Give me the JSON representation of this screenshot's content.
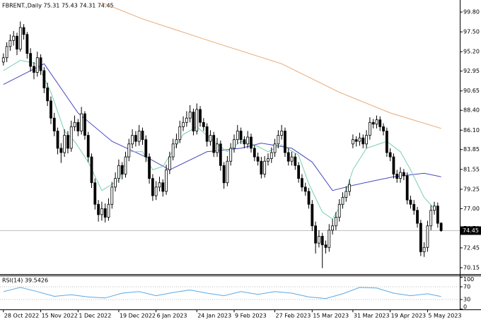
{
  "chart_data": [
    {
      "type": "candlestick",
      "title": "FBRENT.,Daily 75.31 75.43 74.31 74.45",
      "xlim": [
        -1,
        134.5
      ],
      "ylim": [
        69.41,
        100.95
      ],
      "yticks": [
        {
          "value": 99.8,
          "label": "99.80"
        },
        {
          "value": 97.5,
          "label": "97.50"
        },
        {
          "value": 95.2,
          "label": "95.20"
        },
        92.95,
        90.65,
        {
          "value": 88.4,
          "label": "88.40"
        },
        {
          "value": 86.1,
          "label": "86.10"
        },
        83.85,
        81.55,
        79.25,
        {
          "value": 77,
          "label": "77.00"
        },
        {
          "value": 74.7,
          "label": "74.70"
        },
        72.45,
        70.15
      ],
      "xticks": [
        {
          "value": 0,
          "label": "28 Oct 2022"
        },
        {
          "value": 11,
          "label": "15 Nov 2022"
        },
        {
          "value": 22,
          "label": "1 Dec 2022"
        },
        {
          "value": 34,
          "label": "19 Dec 2022"
        },
        {
          "value": 45,
          "label": "6 Jan 2023"
        },
        {
          "value": 57,
          "label": "24 Jan 2023"
        },
        {
          "value": 68,
          "label": "9 Feb 2023"
        },
        {
          "value": 80,
          "label": "27 Feb 2023"
        },
        {
          "value": 91,
          "label": "15 Mar 2023"
        },
        {
          "value": 103,
          "label": "31 Mar 2023"
        },
        {
          "value": 114,
          "label": "19 Apr 2023"
        },
        {
          "value": 125,
          "label": "5 May 2023"
        }
      ],
      "last_price": 74.45,
      "candles": [
        [
          94.0,
          95.0,
          93.6,
          94.5
        ],
        [
          94.5,
          96.3,
          94.0,
          95.8
        ],
        [
          95.8,
          97.2,
          95.3,
          96.5
        ],
        [
          96.5,
          97.6,
          95.9,
          97.0
        ],
        [
          97.0,
          97.4,
          94.8,
          95.5
        ],
        [
          95.5,
          98.7,
          95.2,
          98.0
        ],
        [
          98.0,
          98.4,
          96.6,
          97.2
        ],
        [
          97.2,
          97.5,
          94.4,
          95.0
        ],
        [
          95.0,
          95.6,
          92.9,
          93.5
        ],
        [
          93.5,
          94.0,
          92.0,
          92.8
        ],
        [
          92.8,
          95.2,
          92.3,
          94.5
        ],
        [
          94.5,
          94.9,
          92.5,
          93.0
        ],
        [
          93.0,
          93.4,
          90.4,
          91.0
        ],
        [
          91.0,
          91.6,
          88.9,
          89.5
        ],
        [
          89.5,
          90.0,
          86.8,
          87.5
        ],
        [
          87.5,
          88.1,
          85.4,
          86.0
        ],
        [
          86.0,
          86.4,
          83.3,
          84.0
        ],
        [
          84.0,
          84.6,
          82.3,
          83.5
        ],
        [
          83.5,
          86.2,
          83.0,
          85.5
        ],
        [
          85.5,
          86.0,
          83.4,
          84.0
        ],
        [
          84.0,
          87.2,
          83.6,
          86.5
        ],
        [
          86.5,
          87.8,
          86.0,
          87.0
        ],
        [
          87.0,
          87.4,
          85.4,
          86.0
        ],
        [
          86.0,
          88.8,
          85.6,
          88.0
        ],
        [
          88.0,
          88.3,
          85.0,
          85.5
        ],
        [
          85.5,
          85.9,
          82.4,
          83.0
        ],
        [
          83.0,
          83.4,
          79.4,
          80.0
        ],
        [
          80.0,
          80.5,
          76.9,
          77.5
        ],
        [
          77.5,
          78.0,
          75.5,
          76.3
        ],
        [
          76.3,
          77.8,
          75.6,
          77.0
        ],
        [
          77.0,
          77.6,
          75.4,
          76.0
        ],
        [
          76.0,
          78.2,
          75.6,
          77.5
        ],
        [
          77.5,
          80.1,
          77.0,
          79.5
        ],
        [
          79.5,
          81.2,
          79.0,
          80.5
        ],
        [
          80.5,
          82.7,
          80.0,
          82.0
        ],
        [
          82.0,
          82.4,
          80.4,
          81.0
        ],
        [
          81.0,
          83.6,
          80.6,
          83.0
        ],
        [
          83.0,
          85.1,
          82.5,
          84.5
        ],
        [
          84.5,
          86.2,
          84.0,
          85.5
        ],
        [
          85.5,
          86.0,
          84.2,
          84.8
        ],
        [
          84.8,
          86.7,
          84.3,
          86.0
        ],
        [
          86.0,
          86.4,
          84.4,
          85.0
        ],
        [
          85.0,
          85.5,
          82.4,
          83.0
        ],
        [
          83.0,
          83.4,
          79.9,
          80.5
        ],
        [
          80.5,
          81.0,
          77.9,
          78.5
        ],
        [
          78.5,
          80.2,
          78.0,
          79.5
        ],
        [
          79.5,
          80.7,
          79.0,
          80.0
        ],
        [
          80.0,
          80.4,
          78.4,
          79.0
        ],
        [
          79.0,
          82.1,
          78.6,
          81.5
        ],
        [
          81.5,
          83.6,
          81.0,
          83.0
        ],
        [
          83.0,
          85.1,
          82.6,
          84.5
        ],
        [
          84.5,
          85.7,
          84.0,
          85.0
        ],
        [
          85.0,
          87.2,
          84.6,
          86.5
        ],
        [
          86.5,
          87.7,
          86.0,
          87.0
        ],
        [
          87.0,
          88.3,
          86.5,
          87.5
        ],
        [
          87.5,
          89.0,
          87.0,
          88.2
        ],
        [
          88.2,
          88.6,
          85.5,
          86.0
        ],
        [
          86.0,
          89.2,
          85.6,
          88.5
        ],
        [
          88.5,
          88.9,
          86.5,
          87.0
        ],
        [
          87.0,
          87.5,
          86.0,
          86.5
        ],
        [
          86.5,
          86.9,
          84.2,
          84.8
        ],
        [
          84.8,
          86.1,
          84.3,
          85.5
        ],
        [
          85.5,
          85.9,
          83.0,
          83.5
        ],
        [
          83.5,
          85.2,
          83.0,
          84.5
        ],
        [
          84.5,
          84.9,
          81.4,
          82.0
        ],
        [
          82.0,
          82.4,
          79.3,
          80.0
        ],
        [
          80.0,
          83.1,
          79.6,
          82.5
        ],
        [
          82.5,
          84.6,
          82.0,
          84.0
        ],
        [
          84.0,
          85.6,
          83.5,
          85.0
        ],
        [
          85.0,
          86.7,
          84.5,
          86.0
        ],
        [
          86.0,
          86.4,
          84.5,
          85.0
        ],
        [
          85.0,
          85.4,
          84.0,
          84.5
        ],
        [
          84.5,
          86.0,
          84.0,
          85.3
        ],
        [
          85.3,
          85.7,
          83.5,
          84.0
        ],
        [
          84.0,
          84.4,
          82.5,
          83.0
        ],
        [
          83.0,
          83.5,
          82.0,
          82.5
        ],
        [
          82.5,
          83.0,
          80.5,
          81.0
        ],
        [
          81.0,
          83.1,
          80.6,
          82.5
        ],
        [
          82.5,
          83.4,
          82.0,
          82.8
        ],
        [
          82.8,
          84.1,
          82.3,
          83.5
        ],
        [
          83.5,
          85.1,
          83.0,
          84.5
        ],
        [
          84.5,
          86.1,
          84.0,
          85.5
        ],
        [
          85.5,
          86.7,
          85.0,
          86.0
        ],
        [
          86.0,
          86.4,
          83.0,
          83.5
        ],
        [
          83.5,
          84.0,
          82.0,
          82.5
        ],
        [
          82.5,
          83.6,
          82.0,
          83.0
        ],
        [
          83.0,
          83.4,
          81.5,
          82.0
        ],
        [
          82.0,
          82.4,
          80.0,
          80.5
        ],
        [
          80.5,
          81.0,
          79.0,
          79.5
        ],
        [
          79.5,
          80.0,
          78.5,
          79.0
        ],
        [
          79.0,
          79.4,
          77.0,
          77.5
        ],
        [
          77.5,
          78.0,
          74.4,
          75.0
        ],
        [
          75.0,
          75.5,
          71.8,
          73.0
        ],
        [
          73.0,
          74.5,
          72.5,
          73.8
        ],
        [
          73.8,
          74.2,
          70.1,
          72.8
        ],
        [
          72.8,
          73.3,
          71.8,
          72.5
        ],
        [
          72.5,
          75.2,
          72.0,
          74.5
        ],
        [
          74.5,
          75.8,
          74.0,
          75.0
        ],
        [
          75.0,
          76.6,
          74.5,
          76.0
        ],
        [
          76.0,
          78.1,
          75.5,
          77.5
        ],
        [
          77.5,
          78.9,
          77.0,
          78.3
        ],
        [
          78.3,
          79.6,
          77.8,
          79.0
        ],
        [
          79.0,
          80.4,
          78.5,
          79.8
        ],
        [
          84.5,
          85.6,
          84.0,
          85.0
        ],
        [
          85.0,
          85.4,
          84.2,
          84.8
        ],
        [
          84.8,
          85.8,
          84.3,
          85.2
        ],
        [
          85.2,
          85.6,
          84.0,
          84.5
        ],
        [
          84.5,
          86.1,
          84.0,
          85.5
        ],
        [
          85.5,
          87.6,
          85.0,
          87.0
        ],
        [
          87.0,
          87.4,
          86.3,
          86.8
        ],
        [
          86.8,
          87.8,
          86.3,
          87.3
        ],
        [
          87.3,
          87.7,
          86.0,
          86.5
        ],
        [
          86.5,
          86.9,
          85.5,
          86.0
        ],
        [
          86.0,
          86.4,
          83.0,
          83.5
        ],
        [
          83.5,
          84.0,
          82.5,
          83.0
        ],
        [
          83.0,
          83.4,
          80.5,
          81.0
        ],
        [
          81.0,
          81.5,
          80.0,
          80.5
        ],
        [
          80.5,
          81.8,
          80.0,
          81.2
        ],
        [
          81.2,
          81.6,
          80.3,
          80.8
        ],
        [
          80.8,
          81.2,
          77.5,
          78.0
        ],
        [
          78.0,
          78.5,
          77.0,
          77.5
        ],
        [
          77.5,
          78.0,
          76.3,
          76.8
        ],
        [
          76.8,
          77.2,
          74.8,
          75.3
        ],
        [
          75.3,
          75.7,
          71.5,
          72.0
        ],
        [
          72.0,
          73.1,
          71.4,
          72.5
        ],
        [
          72.5,
          75.6,
          72.0,
          75.0
        ],
        [
          75.0,
          77.4,
          74.5,
          76.8
        ],
        [
          76.8,
          77.8,
          76.3,
          77.3
        ],
        [
          77.3,
          77.7,
          74.8,
          75.3
        ],
        [
          75.31,
          75.43,
          74.31,
          74.45
        ]
      ],
      "overlays": [
        {
          "color": "#e8a875",
          "x": [
            29,
            41,
            62,
            82,
            99,
            114,
            129
          ],
          "values": [
            100.9,
            99.0,
            96.3,
            93.8,
            90.5,
            88.1,
            86.3
          ]
        },
        {
          "color": "#4848c0",
          "x": [
            0,
            12,
            22,
            32,
            43,
            49,
            60,
            70,
            76,
            85,
            91,
            97,
            103,
            110,
            115,
            124,
            129
          ],
          "values": [
            91.4,
            93.8,
            88.1,
            84.8,
            82.8,
            81.5,
            83.6,
            84.0,
            84.6,
            84.0,
            82.4,
            79.1,
            79.7,
            80.3,
            80.7,
            81.1,
            80.7
          ]
        },
        {
          "color": "#78ceb0",
          "x": [
            0,
            5,
            10,
            14,
            18,
            21,
            25,
            29,
            34,
            37,
            41,
            44,
            47,
            53,
            57,
            62,
            66,
            70,
            74,
            78,
            82,
            87,
            90,
            94,
            97,
            100,
            103,
            107,
            113,
            117,
            120,
            124,
            127
          ],
          "values": [
            93.0,
            94.2,
            93.8,
            90.5,
            86.0,
            84.8,
            82.4,
            79.1,
            80.3,
            83.6,
            83.6,
            81.5,
            81.9,
            85.6,
            86.5,
            84.8,
            83.6,
            84.8,
            84.4,
            83.6,
            84.4,
            83.2,
            79.9,
            76.6,
            75.8,
            77.8,
            81.5,
            84.0,
            84.8,
            83.6,
            81.5,
            78.3,
            77.0
          ]
        }
      ]
    },
    {
      "type": "line",
      "title": "RSI(14) 39.5426",
      "color": "#5aa9e6",
      "xlim": [
        -1,
        134.5
      ],
      "ylim": [
        0,
        100
      ],
      "yticks": [
        100,
        70,
        30,
        0
      ],
      "x": [
        0,
        5,
        10,
        15,
        20,
        25,
        30,
        35,
        40,
        45,
        50,
        55,
        60,
        65,
        70,
        75,
        80,
        85,
        90,
        95,
        100,
        105,
        110,
        115,
        120,
        125,
        129
      ],
      "values": [
        55,
        68,
        55,
        40,
        45,
        38,
        35,
        50,
        55,
        42,
        52,
        60,
        50,
        42,
        55,
        46,
        55,
        50,
        38,
        33,
        48,
        68,
        66,
        50,
        42,
        48,
        39.5426
      ]
    }
  ]
}
